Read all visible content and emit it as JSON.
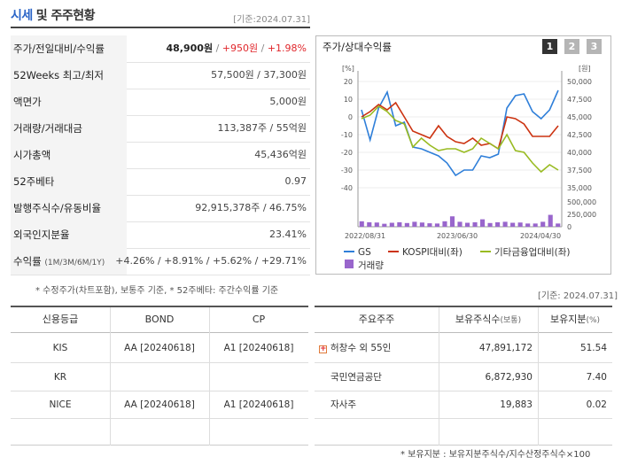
{
  "header": {
    "title_a": "시세",
    "title_b": "및 주주현황",
    "date": "[기준:2024.07.31]"
  },
  "summary": {
    "rows": [
      {
        "label": "주가/전일대비/수익률",
        "price": "48,900원",
        "sep": " / ",
        "change": "+950원",
        "sep2": " / ",
        "rate": "+1.98%"
      },
      {
        "label": "52Weeks 최고/최저",
        "value": "57,500원 / 37,300원"
      },
      {
        "label": "액면가",
        "value": "5,000원"
      },
      {
        "label": "거래량/거래대금",
        "value": "113,387주 / 55억원"
      },
      {
        "label": "시가총액",
        "value": "45,436억원"
      },
      {
        "label": "52주베타",
        "value": "0.97"
      },
      {
        "label": "발행주식수/유동비율",
        "value": "92,915,378주 / 46.75%"
      },
      {
        "label": "외국인지분율",
        "value": "23.41%"
      },
      {
        "label": "수익률",
        "label_small": "(1M/3M/6M/1Y)",
        "value": "+4.26% / +8.91% / +5.62% / +29.71%"
      }
    ],
    "note": "* 수정주가(차트포함), 보통주 기준, * 52주베타: 주간수익률 기준"
  },
  "chart_panel": {
    "title": "주가/상대수익률",
    "period_buttons": [
      "1",
      "2",
      "3"
    ],
    "active_button": "1"
  },
  "chart_data": {
    "type": "line",
    "x_ticks": [
      "2022/08/31",
      "2023/06/30",
      "2024/04/30"
    ],
    "left_axis": {
      "unit": "[%]",
      "ticks": [
        20,
        10,
        0,
        -10,
        -20,
        -30,
        -40
      ]
    },
    "right_axis": {
      "unit": "[원]",
      "ticks": [
        "50,000",
        "47,500",
        "45,000",
        "42,500",
        "40,000",
        "37,500",
        "35,000"
      ]
    },
    "volume_axis": {
      "ticks": [
        "500,000",
        "250,000",
        "0"
      ]
    },
    "series": [
      {
        "name": "GS",
        "color": "#2f7fd9",
        "values": [
          4,
          -13,
          5,
          14,
          -5,
          -3,
          -17,
          -18,
          -20,
          -22,
          -26,
          -33,
          -30,
          -30,
          -22,
          -23,
          -21,
          5,
          12,
          13,
          3,
          -1,
          4,
          15
        ]
      },
      {
        "name": "KOSPI대비(좌)",
        "color": "#cc3311",
        "values": [
          0,
          3,
          7,
          4,
          8,
          0,
          -8,
          -10,
          -12,
          -5,
          -11,
          -14,
          -15,
          -12,
          -16,
          -15,
          -18,
          0,
          -1,
          -4,
          -11,
          -11,
          -11,
          -5
        ]
      },
      {
        "name": "기타금융업대비(좌)",
        "color": "#99bb22",
        "values": [
          -1,
          1,
          6,
          3,
          -2,
          -4,
          -17,
          -12,
          -16,
          -19,
          -18,
          -18,
          -20,
          -18,
          -12,
          -15,
          -18,
          -10,
          -19,
          -20,
          -26,
          -31,
          -27,
          -30
        ]
      }
    ],
    "volume": {
      "name": "거래량",
      "color": "#9966cc",
      "values": [
        0.22,
        0.18,
        0.17,
        0.12,
        0.16,
        0.18,
        0.15,
        0.2,
        0.17,
        0.14,
        0.13,
        0.22,
        0.42,
        0.2,
        0.16,
        0.18,
        0.3,
        0.15,
        0.18,
        0.2,
        0.16,
        0.17,
        0.13,
        0.13,
        0.2,
        0.48,
        0.13
      ]
    }
  },
  "date2": "[기준: 2024.07.31]",
  "credit": {
    "headers": [
      "신용등급",
      "BOND",
      "CP"
    ],
    "rows": [
      [
        "KIS",
        "AA  [20240618]",
        "A1  [20240618]"
      ],
      [
        "KR",
        "",
        ""
      ],
      [
        "NICE",
        "AA  [20240618]",
        "A1  [20240618]"
      ],
      [
        "",
        "",
        ""
      ]
    ]
  },
  "holders": {
    "headers": [
      "주요주주",
      "보유주식수",
      "(보통)",
      "보유지분",
      "(%)"
    ],
    "rows": [
      {
        "name": "허창수 외 55인",
        "shares": "47,891,172",
        "pct": "51.54",
        "expand": "+"
      },
      {
        "name": "국민연금공단",
        "shares": "6,872,930",
        "pct": "7.40"
      },
      {
        "name": "자사주",
        "shares": "19,883",
        "pct": "0.02"
      }
    ],
    "footnote": "* 보유지분 : 보유지분주식수/지수산정주식수×100"
  }
}
